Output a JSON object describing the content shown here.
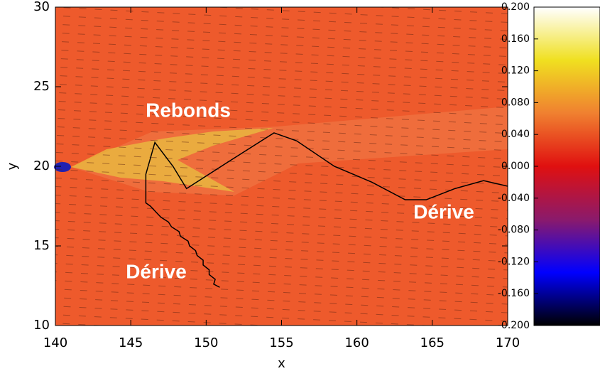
{
  "chart_data": {
    "type": "line",
    "xlabel": "x",
    "ylabel": "y",
    "xlim": [
      140,
      170
    ],
    "xticks": [
      140,
      145,
      150,
      155,
      160,
      165,
      170
    ],
    "ylim": [
      10,
      30
    ],
    "yticks": [
      10,
      15,
      20,
      25,
      30
    ],
    "series": [
      {
        "color": "#000000",
        "x": [
          150.9,
          150.5,
          150.6,
          150.2,
          150.2,
          149.8,
          149.8,
          149.4,
          149.3,
          148.9,
          148.8,
          148.3,
          148.2,
          147.7,
          147.5,
          147.0,
          146.7,
          146.3,
          146.0,
          146.0,
          146.6,
          147.8,
          148.7,
          151.5,
          154.5,
          156.0,
          158.5,
          161.0,
          163.2,
          164.6,
          166.5,
          168.4,
          170.0
        ],
        "values": [
          12.4,
          12.6,
          12.9,
          13.2,
          13.5,
          13.8,
          14.1,
          14.4,
          14.7,
          15.0,
          15.3,
          15.6,
          15.9,
          16.2,
          16.5,
          16.8,
          17.1,
          17.5,
          17.7,
          19.5,
          21.5,
          20.0,
          18.6,
          20.3,
          22.1,
          21.6,
          20.0,
          19.0,
          17.9,
          17.9,
          18.6,
          19.1,
          18.75
        ]
      }
    ],
    "annotations": [
      "Rebonds",
      "Dérive",
      "Dérive"
    ],
    "colorbar": {
      "clim": [
        -0.2,
        0.2
      ],
      "colormap": [
        "#000000",
        "#0000ff",
        "#8b1a6b",
        "#e01010",
        "#f08030",
        "#f0e020",
        "#ffffff"
      ],
      "ticks": [
        {
          "value": 0.2,
          "label": "0.200"
        },
        {
          "value": 0.16,
          "label": "0.160"
        },
        {
          "value": 0.12,
          "label": "0.120"
        },
        {
          "value": 0.08,
          "label": "0.080"
        },
        {
          "value": 0.04,
          "label": "0.040"
        },
        {
          "value": 0,
          "label": "0.000"
        },
        {
          "value": -0.04,
          "label": "-0.040"
        },
        {
          "value": -0.08,
          "label": "-0.080"
        },
        {
          "value": -0.12,
          "label": "-0.120"
        },
        {
          "value": -0.16,
          "label": "-0.160"
        },
        {
          "value": -0.2,
          "label": "-0.200"
        }
      ]
    }
  }
}
